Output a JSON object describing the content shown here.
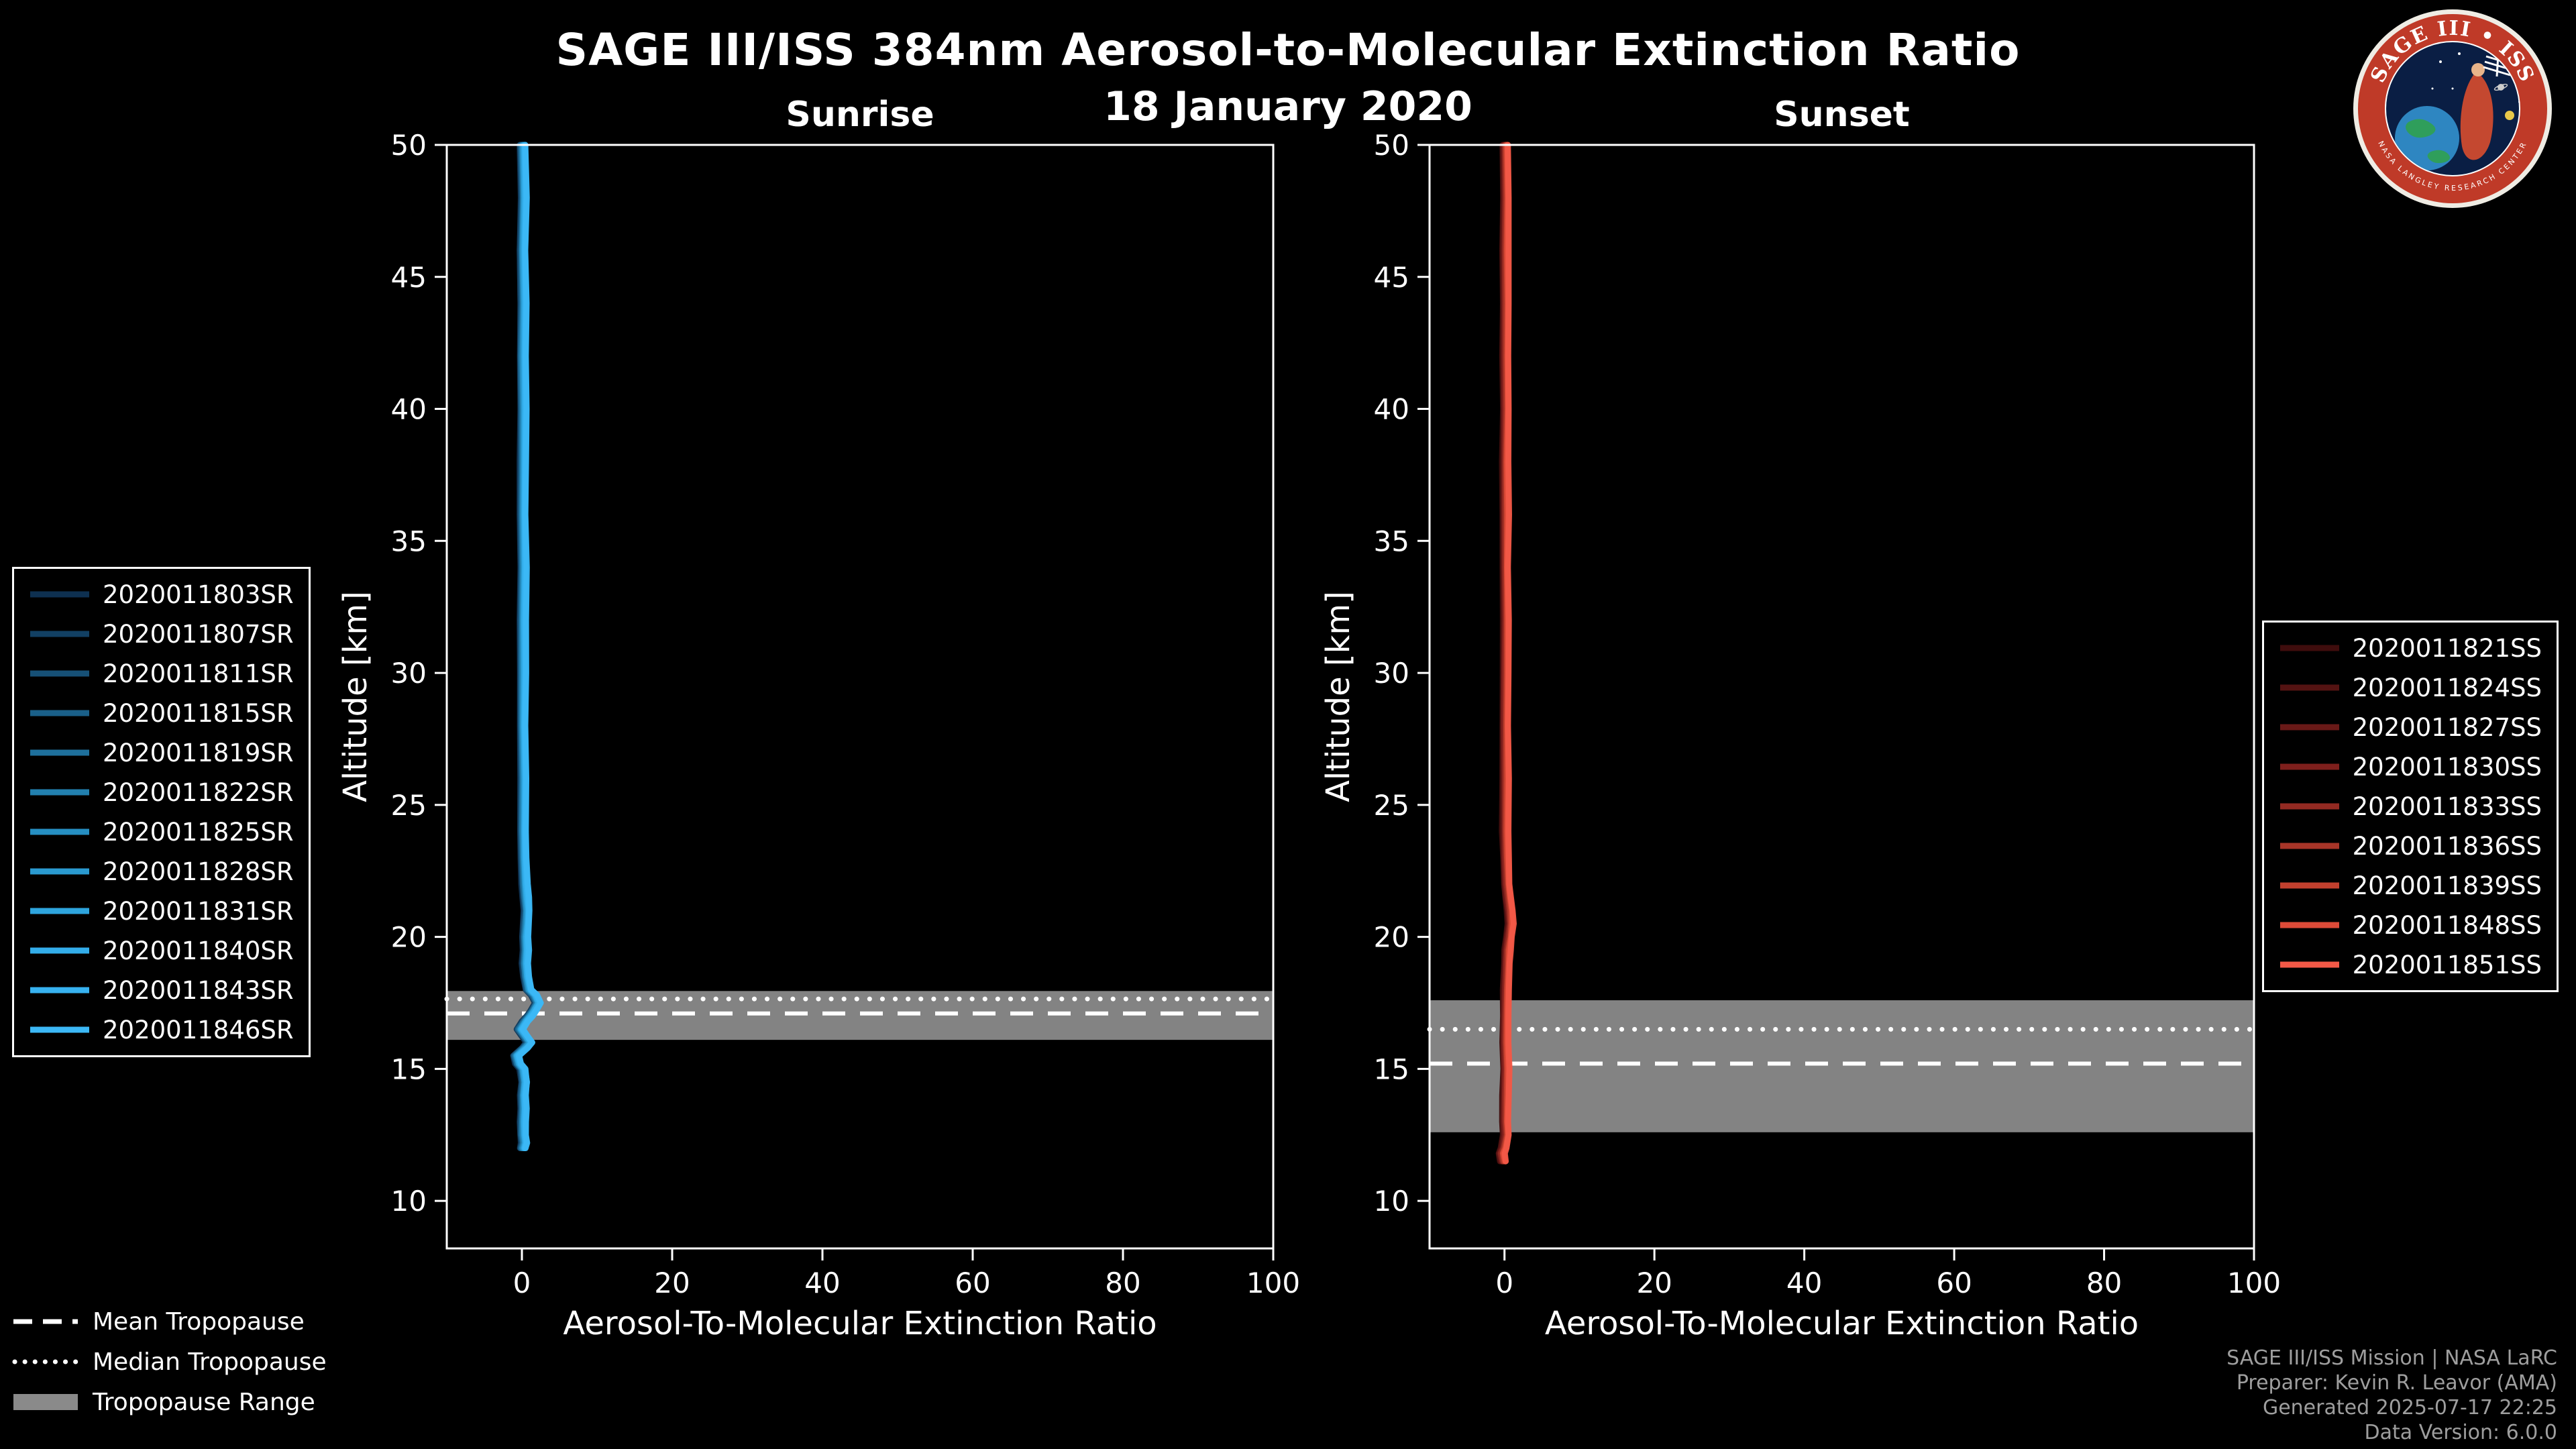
{
  "header": {
    "title": "SAGE III/ISS 384nm Aerosol-to-Molecular Extinction Ratio",
    "date": "18 January 2020"
  },
  "logo": {
    "title": "SAGE III • ISS",
    "ring_text": "NASA LANGLEY RESEARCH CENTER"
  },
  "tropopause_legend": {
    "mean": "Mean Tropopause",
    "median": "Median Tropopause",
    "range": "Tropopause Range"
  },
  "footer": {
    "lines": [
      "SAGE III/ISS Mission | NASA LaRC",
      "Preparer: Kevin R. Leavor (AMA)",
      "Generated 2025-07-17 22:25",
      "Data Version: 6.0.0"
    ]
  },
  "style": {
    "band_color": "#8a8a8a",
    "frame_color": "#ffffff",
    "text_color": "#ffffff",
    "muted_color": "#9e9e9e",
    "background": "#000000"
  },
  "noise": {
    "seed": 11,
    "series_spread": 0.4,
    "point_jitter": 0.12
  },
  "chart_data": [
    {
      "type": "line",
      "panel": "sunrise",
      "title": "Sunrise",
      "xlabel": "Aerosol-To-Molecular Extinction Ratio",
      "ylabel": "Altitude [km]",
      "xlim": [
        -10,
        100
      ],
      "ylim": [
        8.2,
        50
      ],
      "xticks": [
        0,
        20,
        40,
        60,
        80,
        100
      ],
      "yticks": [
        10,
        15,
        20,
        25,
        30,
        35,
        40,
        45,
        50
      ],
      "series": [
        {
          "name": "2020011803SR",
          "color": "#0e3050"
        },
        {
          "name": "2020011807SR",
          "color": "#124063"
        },
        {
          "name": "2020011811SR",
          "color": "#165076"
        },
        {
          "name": "2020011815SR",
          "color": "#1a6089"
        },
        {
          "name": "2020011819SR",
          "color": "#1e709c"
        },
        {
          "name": "2020011822SR",
          "color": "#2280af"
        },
        {
          "name": "2020011825SR",
          "color": "#268fc2"
        },
        {
          "name": "2020011828SR",
          "color": "#2a9ad0"
        },
        {
          "name": "2020011831SR",
          "color": "#2ea5de"
        },
        {
          "name": "2020011840SR",
          "color": "#33adea"
        },
        {
          "name": "2020011843SR",
          "color": "#37b2f0"
        },
        {
          "name": "2020011846SR",
          "color": "#3cb8f6"
        }
      ],
      "profile": {
        "altitude_km": [
          50,
          48,
          46,
          44,
          42,
          40,
          38,
          36,
          34,
          32,
          30,
          28,
          26,
          24,
          23,
          22,
          21.5,
          21,
          20.5,
          20,
          19.5,
          19,
          18.5,
          18,
          17.8,
          17.5,
          17.2,
          17,
          16.8,
          16.5,
          16.2,
          16,
          15.8,
          15.5,
          15.2,
          15,
          14.5,
          14,
          13.5,
          13,
          12.5,
          12.2,
          12
        ],
        "ratio": [
          0.1,
          0.25,
          0.1,
          0.2,
          0.1,
          0.2,
          0.15,
          0.1,
          0.2,
          0.1,
          0.15,
          0.1,
          0.2,
          0.15,
          0.2,
          0.35,
          0.5,
          0.65,
          0.55,
          0.45,
          0.5,
          0.4,
          0.55,
          0.9,
          1.6,
          2.1,
          1.5,
          1.0,
          0.4,
          -0.3,
          0.5,
          1.0,
          0.4,
          -0.8,
          -0.5,
          0.1,
          0.3,
          0.15,
          0.2,
          0.1,
          0.15,
          0.3,
          0.1
        ]
      },
      "tropopause": {
        "mean_km": 17.1,
        "median_km": 17.65,
        "range_km": [
          16.1,
          17.95
        ]
      }
    },
    {
      "type": "line",
      "panel": "sunset",
      "title": "Sunset",
      "xlabel": "Aerosol-To-Molecular Extinction Ratio",
      "ylabel": "Altitude [km]",
      "xlim": [
        -10,
        100
      ],
      "ylim": [
        8.2,
        50
      ],
      "xticks": [
        0,
        20,
        40,
        60,
        80,
        100
      ],
      "yticks": [
        10,
        15,
        20,
        25,
        30,
        35,
        40,
        45,
        50
      ],
      "series": [
        {
          "name": "2020011821SS",
          "color": "#3f0d0d"
        },
        {
          "name": "2020011824SS",
          "color": "#541312"
        },
        {
          "name": "2020011827SS",
          "color": "#691917"
        },
        {
          "name": "2020011830SS",
          "color": "#7e1f1c"
        },
        {
          "name": "2020011833SS",
          "color": "#932a22"
        },
        {
          "name": "2020011836SS",
          "color": "#a83528"
        },
        {
          "name": "2020011839SS",
          "color": "#c2402e"
        },
        {
          "name": "2020011848SS",
          "color": "#dd4b38"
        },
        {
          "name": "2020011851SS",
          "color": "#f25947"
        }
      ],
      "profile": {
        "altitude_km": [
          50,
          48,
          46,
          44,
          42,
          40,
          38,
          36,
          34,
          32,
          30,
          28,
          26,
          24,
          23,
          22,
          21.5,
          21,
          20.5,
          20,
          19.5,
          19,
          18,
          17,
          16,
          15,
          14,
          13,
          12.5,
          12,
          11.8,
          11.5
        ],
        "ratio": [
          0.1,
          0.2,
          0.1,
          0.15,
          0.1,
          0.2,
          0.1,
          0.15,
          0.1,
          0.2,
          0.15,
          0.1,
          0.15,
          0.1,
          0.2,
          0.3,
          0.5,
          0.7,
          0.8,
          0.6,
          0.4,
          0.3,
          0.2,
          0.15,
          0.1,
          0.2,
          0.15,
          0.1,
          0.2,
          -0.1,
          -0.4,
          -0.2
        ]
      },
      "tropopause": {
        "mean_km": 15.2,
        "median_km": 16.5,
        "range_km": [
          12.6,
          17.6
        ]
      }
    }
  ]
}
